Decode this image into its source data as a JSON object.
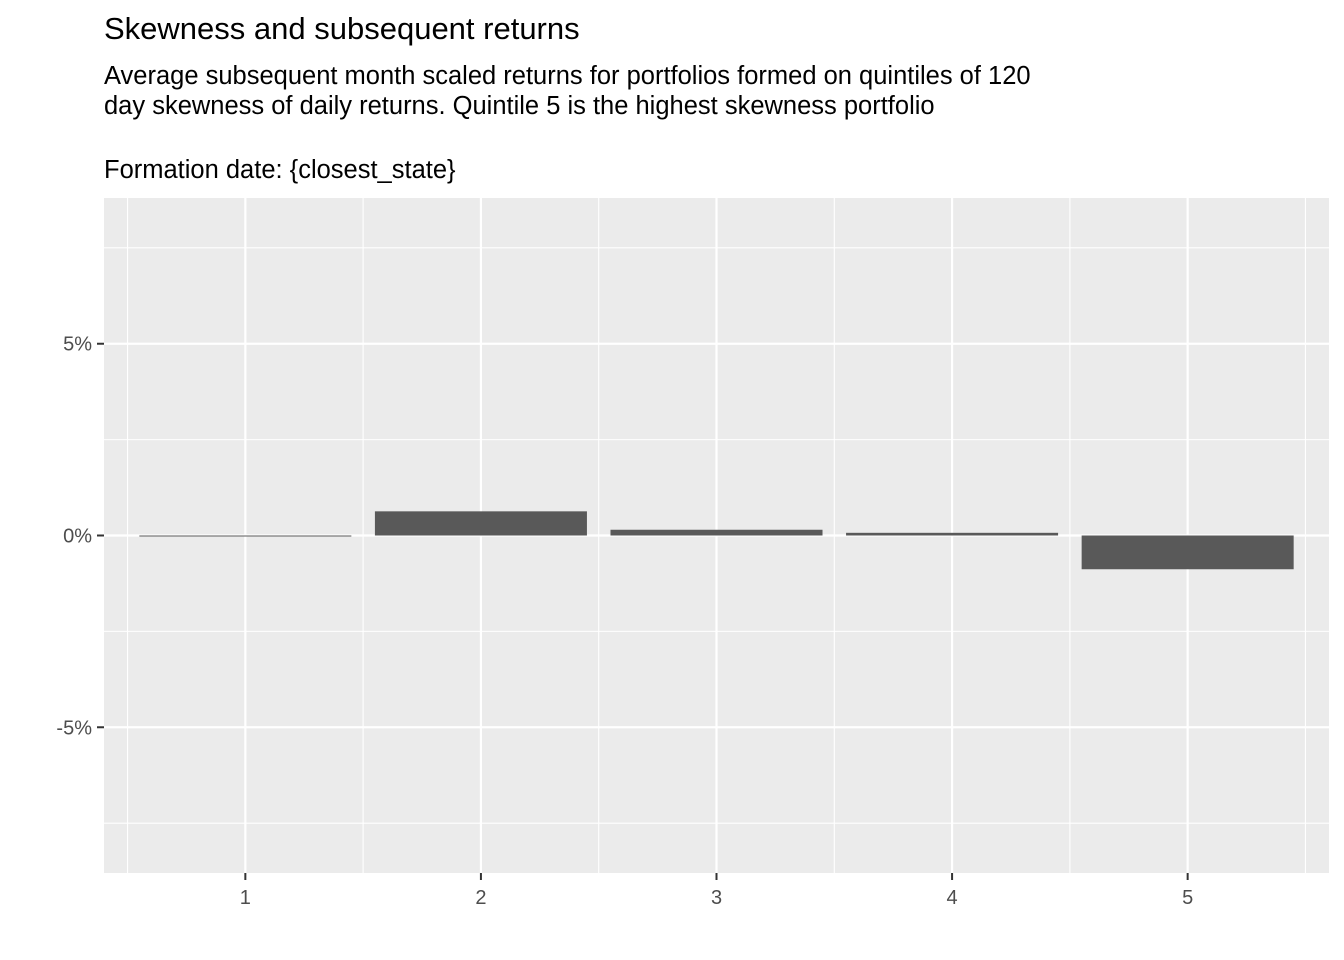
{
  "chart_data": {
    "type": "bar",
    "title": "Skewness and subsequent returns",
    "subtitle_lines": [
      "Average subsequent month scaled returns for portfolios formed on quintiles of 120",
      "day skewness of daily returns.  Quintile 5 is the highest skewness portfolio",
      "",
      "Formation date: {closest_state}"
    ],
    "xlabel": "",
    "ylabel": "",
    "categories": [
      "1",
      "2",
      "3",
      "4",
      "5"
    ],
    "values": [
      -0.02,
      0.63,
      0.15,
      0.07,
      -0.88
    ],
    "value_unit": "%",
    "ylim": [
      -8.8,
      8.8
    ],
    "y_ticks": [
      -5,
      0,
      5
    ],
    "y_tick_labels": [
      "-5%",
      "0%",
      "5%"
    ],
    "y_minor_ticks": [
      -7.5,
      -2.5,
      2.5,
      7.5
    ],
    "grid": true,
    "legend": "none",
    "colors": {
      "panel_background": "#ebebeb",
      "gridline": "#ffffff",
      "bar_fill": "#595959",
      "tick_text": "#4d4d4d",
      "tick_mark": "#333333"
    }
  }
}
